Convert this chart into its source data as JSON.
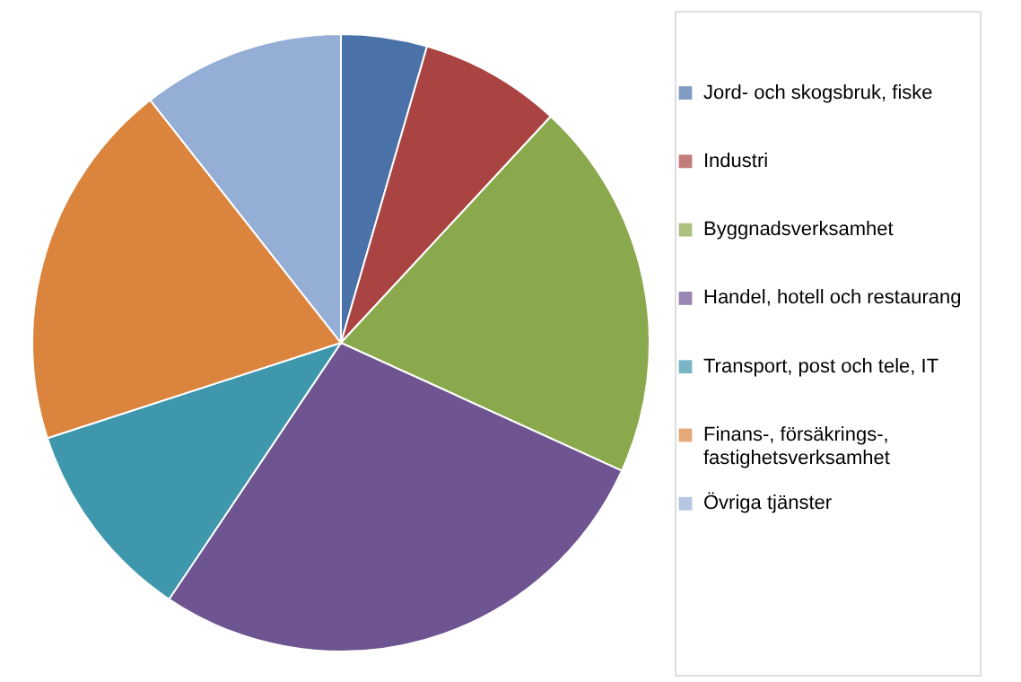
{
  "chart_data": {
    "type": "pie",
    "legend": "right",
    "categories": [
      "Jord- och skogsbruk, fiske",
      "Industri",
      "Byggnadsverksamhet",
      "Handel, hotell och restaurang",
      "Transport, post och tele, IT",
      "Finans-, försäkrings-, fastighetsverksamhet",
      "Övriga tjänster"
    ],
    "values": [
      4.5,
      7.4,
      19.9,
      27.6,
      10.6,
      19.4,
      10.6
    ],
    "colors": [
      "#4a72a8",
      "#a94442",
      "#8aa84c",
      "#6e5490",
      "#3f97ae",
      "#db843d",
      "#95aed6"
    ]
  }
}
